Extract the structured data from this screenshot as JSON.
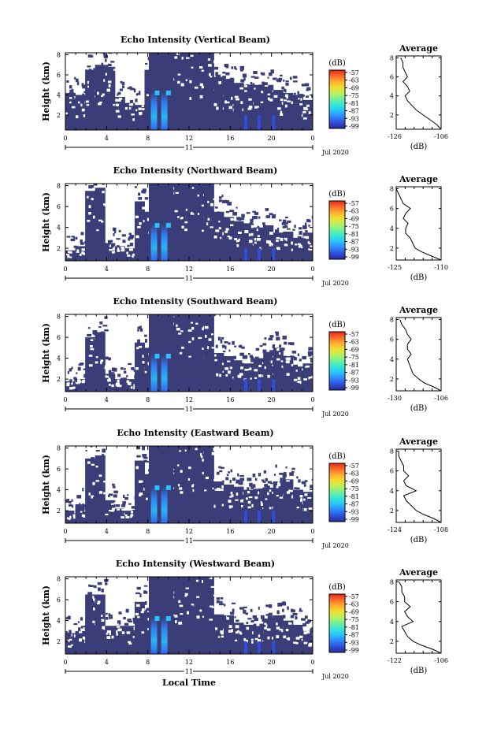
{
  "colors": {
    "background_echo": "#3a3d78",
    "colormap": [
      "#2a2a9a",
      "#2f4fd8",
      "#2f86ff",
      "#29c2ff",
      "#35e6d8",
      "#6ff09a",
      "#b8f060",
      "#f0e030",
      "#ffb030",
      "#ff6a2a",
      "#e02a1a"
    ],
    "axis": "#000000"
  },
  "chart_data": [
    {
      "type": "heatmap",
      "title": "Echo Intensity (Vertical Beam)",
      "ylabel": "Height (km)",
      "xlabel": "",
      "x_ticks": [
        "0",
        "4",
        "8",
        "12",
        "16",
        "20",
        "0"
      ],
      "x_range": [
        0,
        24
      ],
      "y_ticks": [
        "2",
        "4",
        "6",
        "8"
      ],
      "y_range": [
        0.5,
        8.2
      ],
      "date_marker": "11",
      "date_label": "Jul 2020",
      "colorbar": {
        "unit": "(dB)",
        "ticks": [
          "-57",
          "-63",
          "-69",
          "-75",
          "-81",
          "-87",
          "-93",
          "-99"
        ]
      },
      "echo_top_km": [
        4.2,
        4.0,
        6.5,
        7.0,
        6.8,
        3.8,
        3.2,
        3.0,
        6.5,
        6.0,
        8.2,
        8.2,
        8.2,
        8.2,
        8.2,
        5.8,
        5.6,
        5.2,
        5.0,
        5.0,
        5.0,
        4.5,
        4.2,
        4.0,
        3.5
      ],
      "average": {
        "title": "Average",
        "xlabel": "(dB)",
        "x_ticks": [
          "-126",
          "-106"
        ],
        "x_range": [
          -126,
          -106
        ],
        "y_range": [
          0.5,
          8.2
        ],
        "y_ticks": [
          "2",
          "4",
          "6",
          "8"
        ],
        "height_km": [
          0.5,
          1,
          1.5,
          2,
          2.5,
          3,
          3.5,
          4,
          4.5,
          5,
          5.5,
          6,
          6.5,
          7,
          7.5,
          8
        ],
        "values_db": [
          -106,
          -108,
          -111,
          -114,
          -117,
          -119,
          -121,
          -122,
          -120,
          -121,
          -123,
          -121,
          -122,
          -123,
          -123,
          -124
        ]
      }
    },
    {
      "type": "heatmap",
      "title": "Echo Intensity (Northward Beam)",
      "ylabel": "Height (km)",
      "x_ticks": [
        "0",
        "4",
        "8",
        "12",
        "16",
        "20",
        "0"
      ],
      "x_range": [
        0,
        24
      ],
      "y_ticks": [
        "2",
        "4",
        "6",
        "8"
      ],
      "y_range": [
        0.8,
        8.2
      ],
      "date_marker": "11",
      "date_label": "Jul 2020",
      "colorbar": {
        "unit": "(dB)",
        "ticks": [
          "-57",
          "-63",
          "-69",
          "-75",
          "-81",
          "-87",
          "-93",
          "-99"
        ]
      },
      "echo_top_km": [
        1.8,
        2.2,
        7.5,
        7.8,
        2.5,
        2.2,
        2.0,
        6.5,
        5.5,
        4.5,
        8.2,
        8.2,
        8.2,
        8.2,
        8.2,
        5.5,
        5.0,
        4.6,
        4.4,
        4.0,
        4.2,
        3.5,
        3.6,
        3.0,
        3.5
      ],
      "average": {
        "title": "Average",
        "xlabel": "(dB)",
        "x_ticks": [
          "-125",
          "-110"
        ],
        "x_range": [
          -125,
          -106
        ],
        "y_range": [
          0.8,
          8.2
        ],
        "y_ticks": [
          "2",
          "4",
          "6",
          "8"
        ],
        "height_km": [
          0.8,
          1.2,
          1.6,
          2,
          2.5,
          3,
          3.5,
          4,
          4.5,
          5,
          5.5,
          6,
          6.5,
          7,
          7.5,
          8
        ],
        "values_db": [
          -106,
          -110,
          -114,
          -117,
          -118,
          -119,
          -121,
          -121,
          -120,
          -122,
          -121,
          -119,
          -122,
          -123,
          -124,
          -125
        ]
      }
    },
    {
      "type": "heatmap",
      "title": "Echo Intensity (Southward Beam)",
      "ylabel": "Height (km)",
      "x_ticks": [
        "0",
        "4",
        "8",
        "12",
        "16",
        "20",
        "0"
      ],
      "x_range": [
        0,
        24
      ],
      "y_ticks": [
        "2",
        "4",
        "6",
        "8"
      ],
      "y_range": [
        0.8,
        8.2
      ],
      "date_marker": "11",
      "date_label": "Jul 2020",
      "colorbar": {
        "unit": "(dB)",
        "ticks": [
          "-57",
          "-63",
          "-69",
          "-75",
          "-81",
          "-87",
          "-93",
          "-99"
        ]
      },
      "echo_top_km": [
        1.8,
        2.0,
        6.0,
        6.5,
        2.5,
        2.0,
        2.0,
        5.5,
        5.0,
        4.0,
        8.2,
        8.2,
        8.2,
        8.2,
        8.2,
        4.5,
        4.2,
        3.8,
        3.5,
        4.0,
        4.6,
        5.0,
        4.2,
        3.2,
        3.5
      ],
      "average": {
        "title": "Average",
        "xlabel": "(dB)",
        "x_ticks": [
          "-130",
          "-106"
        ],
        "x_range": [
          -130,
          -106
        ],
        "y_range": [
          0.8,
          8.2
        ],
        "y_ticks": [
          "2",
          "4",
          "6",
          "8"
        ],
        "height_km": [
          0.8,
          1.2,
          1.6,
          2,
          2.5,
          3,
          3.5,
          4,
          4.5,
          5,
          5.5,
          6,
          6.5,
          7,
          7.5,
          8
        ],
        "values_db": [
          -106,
          -110,
          -115,
          -118,
          -121,
          -122,
          -123,
          -124,
          -122,
          -124,
          -124,
          -122,
          -124,
          -125,
          -127,
          -128
        ]
      }
    },
    {
      "type": "heatmap",
      "title": "Echo Intensity (Eastward Beam)",
      "ylabel": "Height (km)",
      "x_ticks": [
        "0",
        "4",
        "8",
        "12",
        "16",
        "20",
        "0"
      ],
      "x_range": [
        0,
        24
      ],
      "y_ticks": [
        "2",
        "4",
        "6",
        "8"
      ],
      "y_range": [
        0.8,
        8.2
      ],
      "date_marker": "11",
      "date_label": "Jul 2020",
      "colorbar": {
        "unit": "(dB)",
        "ticks": [
          "-57",
          "-63",
          "-69",
          "-75",
          "-81",
          "-87",
          "-93",
          "-99"
        ]
      },
      "echo_top_km": [
        2.0,
        2.6,
        7.0,
        7.3,
        3.0,
        2.2,
        2.0,
        6.8,
        5.5,
        4.2,
        8.2,
        8.2,
        8.2,
        8.2,
        8.2,
        4.8,
        4.5,
        4.3,
        4.0,
        4.1,
        4.2,
        4.8,
        5.0,
        4.0,
        3.8
      ],
      "average": {
        "title": "Average",
        "xlabel": "(dB)",
        "x_ticks": [
          "-124",
          "-108"
        ],
        "x_range": [
          -124,
          -106
        ],
        "y_range": [
          0.8,
          8.2
        ],
        "y_ticks": [
          "2",
          "4",
          "6",
          "8"
        ],
        "height_km": [
          0.8,
          1.2,
          1.6,
          2,
          2.5,
          3,
          3.5,
          4,
          4.5,
          5,
          5.5,
          6,
          6.5,
          7,
          7.5,
          8
        ],
        "values_db": [
          -106,
          -109,
          -113,
          -116,
          -118,
          -120,
          -121,
          -116,
          -120,
          -121,
          -119,
          -121,
          -121,
          -122,
          -123,
          -123
        ]
      }
    },
    {
      "type": "heatmap",
      "title": "Echo Intensity (Westward Beam)",
      "ylabel": "Height (km)",
      "xlabel": "Local Time",
      "x_ticks": [
        "0",
        "4",
        "8",
        "12",
        "16",
        "20",
        "0"
      ],
      "x_range": [
        0,
        24
      ],
      "y_ticks": [
        "2",
        "4",
        "6",
        "8"
      ],
      "y_range": [
        0.8,
        8.2
      ],
      "date_marker": "11",
      "date_label": "Jul 2020",
      "colorbar": {
        "unit": "(dB)",
        "ticks": [
          "-57",
          "-63",
          "-69",
          "-75",
          "-81",
          "-87",
          "-93",
          "-99"
        ]
      },
      "echo_top_km": [
        2.8,
        3.0,
        6.5,
        6.5,
        3.5,
        3.5,
        3.5,
        5.8,
        4.8,
        4.5,
        8.2,
        8.2,
        8.2,
        8.2,
        8.2,
        4.6,
        4.5,
        3.8,
        3.6,
        3.7,
        4.2,
        4.5,
        4.0,
        3.6,
        3.0
      ],
      "average": {
        "title": "Average",
        "xlabel": "(dB)",
        "x_ticks": [
          "-122",
          "-106"
        ],
        "x_range": [
          -122,
          -106
        ],
        "y_range": [
          0.8,
          8.2
        ],
        "y_ticks": [
          "2",
          "4",
          "6",
          "8"
        ],
        "height_km": [
          0.8,
          1.2,
          1.6,
          2,
          2.5,
          3,
          3.5,
          4,
          4.5,
          5,
          5.5,
          6,
          6.5,
          7,
          7.5,
          8
        ],
        "values_db": [
          -106,
          -109,
          -113,
          -116,
          -118,
          -119,
          -120,
          -116,
          -118,
          -119,
          -117,
          -119,
          -119,
          -120,
          -120,
          -121
        ]
      }
    }
  ]
}
